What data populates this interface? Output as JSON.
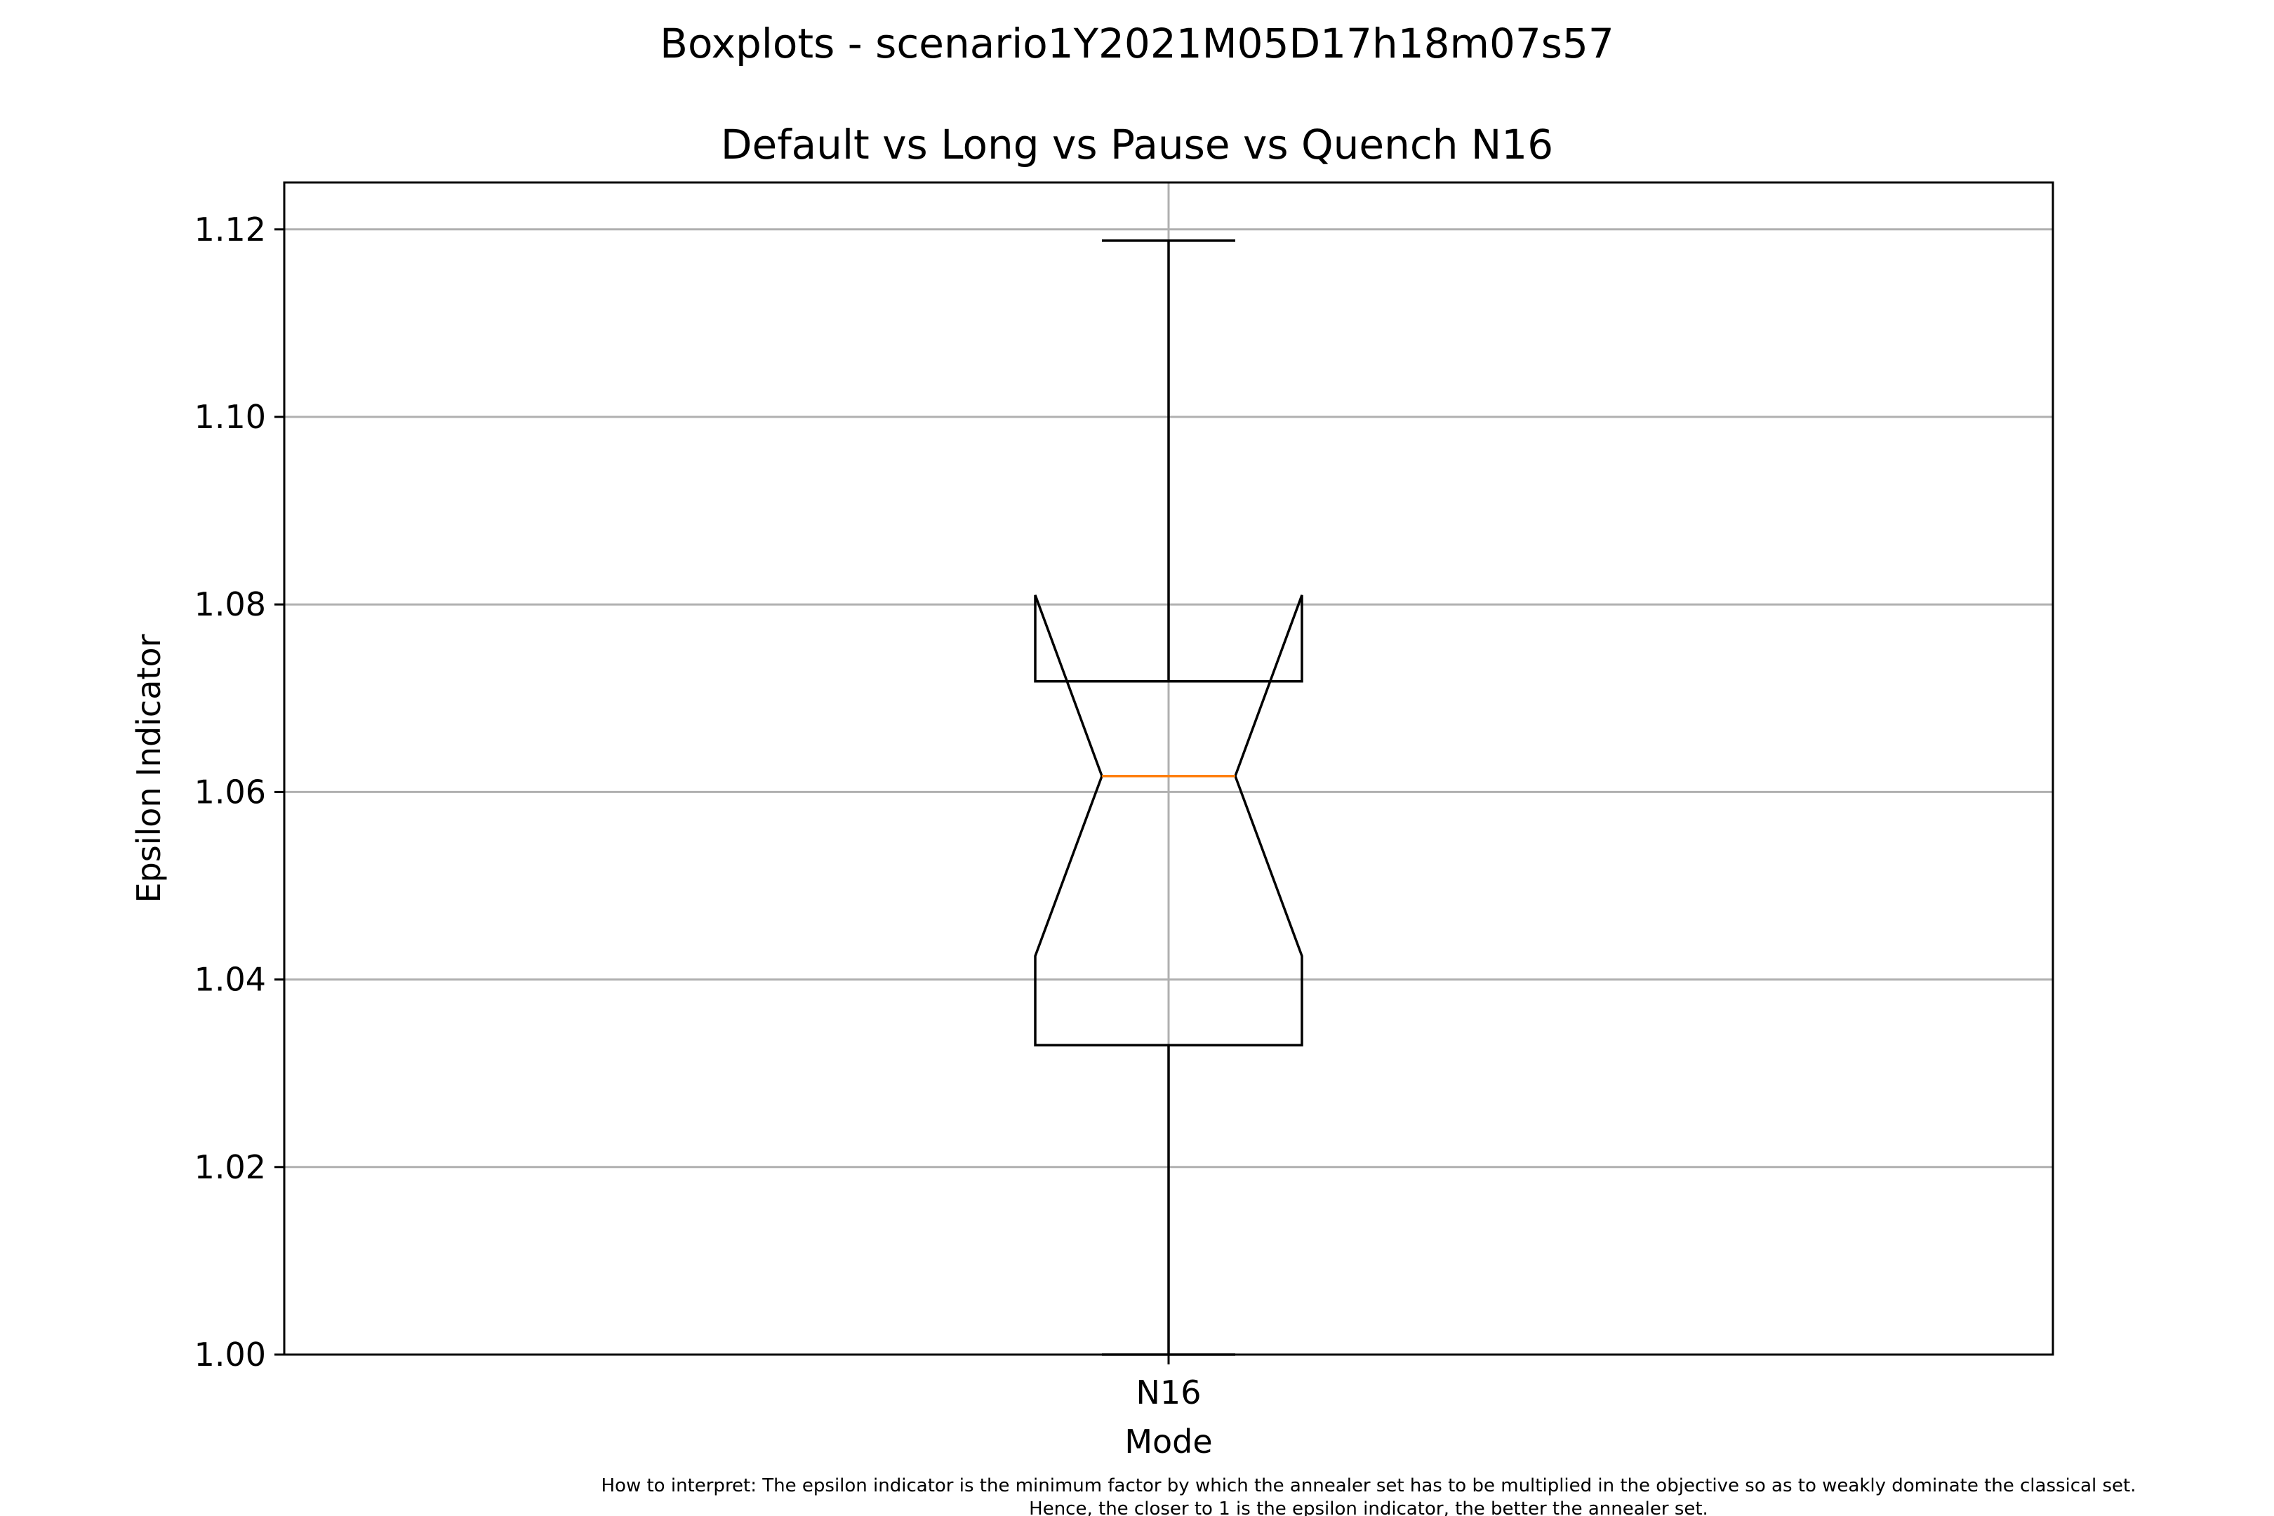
{
  "chart_data": {
    "type": "boxplot",
    "suptitle": "Boxplots - scenario1Y2021M05D17h18m07s57",
    "title": "Default vs Long vs Pause vs Quench N16",
    "xlabel": "Mode",
    "ylabel": "Epsilon Indicator",
    "ylim": [
      1.0,
      1.125
    ],
    "yticks": [
      1.0,
      1.02,
      1.04,
      1.06,
      1.08,
      1.1,
      1.12
    ],
    "ytick_labels": [
      "1.00",
      "1.02",
      "1.04",
      "1.06",
      "1.08",
      "1.10",
      "1.12"
    ],
    "categories": [
      "N16"
    ],
    "grid": true,
    "notched": true,
    "boxes": [
      {
        "category": "N16",
        "whisker_low": 1.0,
        "q1": 1.033,
        "notch_low": 1.0425,
        "median": 1.0617,
        "notch_high": 1.081,
        "q3": 1.0718,
        "whisker_high": 1.1188
      }
    ],
    "colors": {
      "box": "#000000",
      "median": "#ff7f0e",
      "grid": "#b0b0b0"
    },
    "note_lines": [
      "How to interpret: The epsilon indicator is the minimum factor by which the annealer set has to be multiplied in the objective so as to weakly dominate the classical set.",
      "Hence, the closer to 1 is the epsilon indicator, the better the annealer set."
    ]
  }
}
